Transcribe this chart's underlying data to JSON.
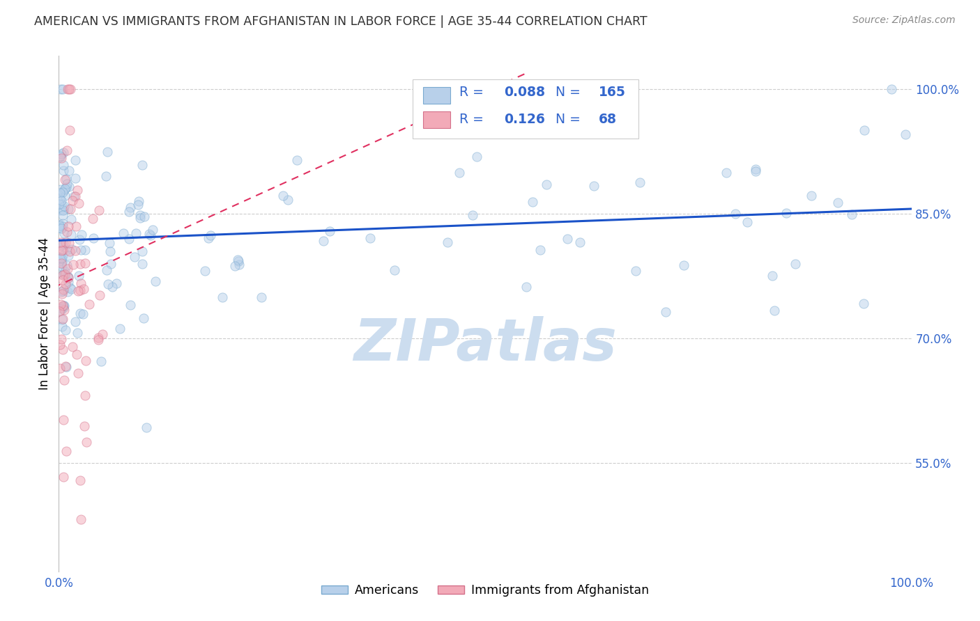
{
  "title": "AMERICAN VS IMMIGRANTS FROM AFGHANISTAN IN LABOR FORCE | AGE 35-44 CORRELATION CHART",
  "source": "Source: ZipAtlas.com",
  "ylabel": "In Labor Force | Age 35-44",
  "right_yticks": [
    0.55,
    0.7,
    0.85,
    1.0
  ],
  "right_ytick_labels": [
    "55.0%",
    "70.0%",
    "85.0%",
    "100.0%"
  ],
  "xlim": [
    0.0,
    1.0
  ],
  "ylim": [
    0.42,
    1.04
  ],
  "american_R": 0.088,
  "american_N": 165,
  "afghan_R": 0.126,
  "afghan_N": 68,
  "american_color": "#b8d0ea",
  "american_edge": "#7aaad0",
  "afghan_color": "#f2aab8",
  "afghan_edge": "#d4708a",
  "american_line_color": "#1a52c8",
  "afghan_line_color": "#e03060",
  "legend_text_color": "#3366cc",
  "watermark": "ZIPatlas",
  "watermark_color": "#ccddef",
  "grid_color": "#cccccc",
  "title_color": "#333333",
  "axis_label_color": "#3366cc",
  "american_trend_start_x": 0.0,
  "american_trend_start_y": 0.818,
  "american_trend_end_x": 1.0,
  "american_trend_end_y": 0.856,
  "afghan_trend_start_x": -0.02,
  "afghan_trend_start_y": 0.755,
  "afghan_trend_end_x": 0.55,
  "afghan_trend_end_y": 1.02,
  "marker_size": 90,
  "marker_alpha": 0.5
}
